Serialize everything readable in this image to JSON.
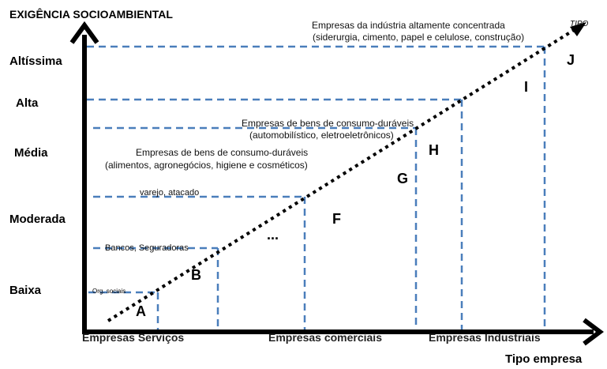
{
  "y_axis": {
    "title": "EXIGÊNCIA SOCIOAMBIENTAL",
    "levels": [
      "Altíssima",
      "Alta",
      "Média",
      "Moderada",
      "Baixa"
    ]
  },
  "x_axis": {
    "title": "Tipo empresa",
    "categories": [
      "Empresas Serviços",
      "Empresas comerciais",
      "Empresas Industriais"
    ],
    "arrow_label": "TIPO"
  },
  "regions": [
    "A",
    "B",
    "...",
    "F",
    "G",
    "H",
    "I",
    "J"
  ],
  "notes": {
    "org_sociais": "Org. sociais",
    "bancos": "Bancos, Seguradoras",
    "varejo": "varejo, atacado",
    "consumo_line1": "Empresas de bens de consumo-duráveis",
    "consumo_line2": "(alimentos, agronegócios, higiene e cosméticos)",
    "duraveis_line1": "Empresas de bens de consumo-duráveis",
    "duraveis_line2": "(automobilístico, eletroeletrônicos)",
    "industria_line1": "Empresas da indústria altamente concentrada",
    "industria_line2": "(siderurgia, cimento, papel e celulose, construção)"
  },
  "colors": {
    "axis": "#000000",
    "dashed_guides": "#4a7ebb",
    "trend_line": "#000000"
  }
}
